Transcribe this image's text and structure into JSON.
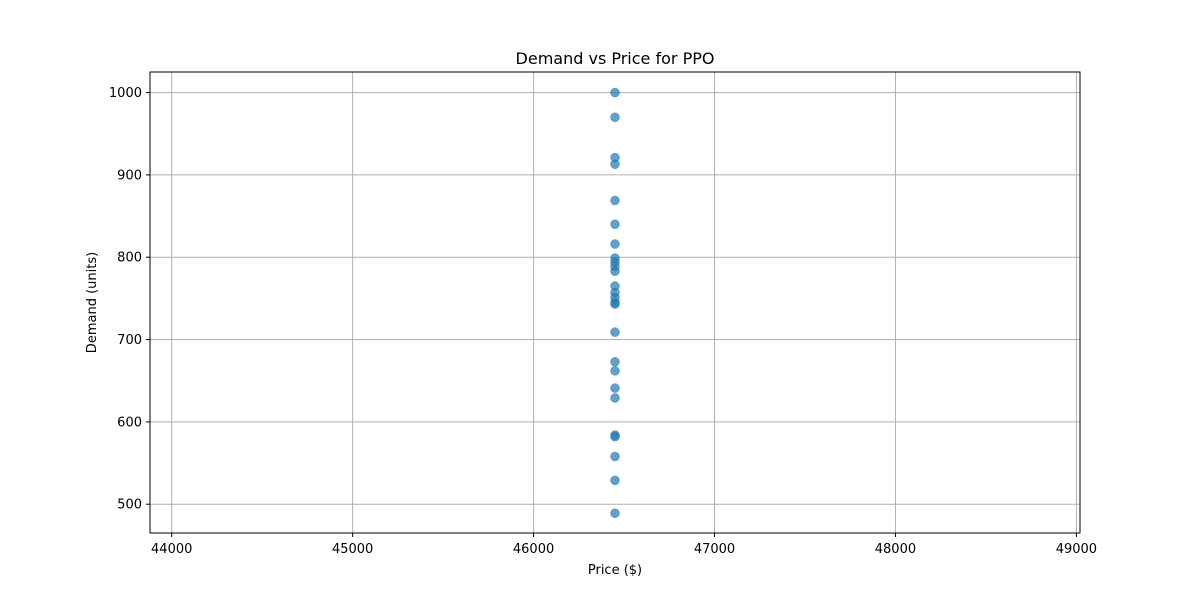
{
  "chart_data": {
    "type": "scatter",
    "title": "Demand vs Price for PPO",
    "xlabel": "Price ($)",
    "ylabel": "Demand (units)",
    "xlim": [
      43880,
      49020
    ],
    "ylim": [
      465,
      1025
    ],
    "x_ticks": [
      44000,
      45000,
      46000,
      47000,
      48000,
      49000
    ],
    "y_ticks": [
      500,
      600,
      700,
      800,
      900,
      1000
    ],
    "grid": true,
    "legend": "none",
    "marker_color": "#1f77b4",
    "marker_alpha": 0.7,
    "points": [
      {
        "x": 46450,
        "y": 1000
      },
      {
        "x": 46450,
        "y": 970
      },
      {
        "x": 46450,
        "y": 921
      },
      {
        "x": 46450,
        "y": 913
      },
      {
        "x": 46450,
        "y": 869
      },
      {
        "x": 46450,
        "y": 840
      },
      {
        "x": 46450,
        "y": 816
      },
      {
        "x": 46450,
        "y": 799
      },
      {
        "x": 46450,
        "y": 794
      },
      {
        "x": 46450,
        "y": 789
      },
      {
        "x": 46450,
        "y": 783
      },
      {
        "x": 46450,
        "y": 765
      },
      {
        "x": 46450,
        "y": 757
      },
      {
        "x": 46450,
        "y": 751
      },
      {
        "x": 46450,
        "y": 745
      },
      {
        "x": 46450,
        "y": 743
      },
      {
        "x": 46450,
        "y": 709
      },
      {
        "x": 46450,
        "y": 673
      },
      {
        "x": 46450,
        "y": 662
      },
      {
        "x": 46450,
        "y": 641
      },
      {
        "x": 46450,
        "y": 629
      },
      {
        "x": 46450,
        "y": 584
      },
      {
        "x": 46450,
        "y": 582
      },
      {
        "x": 46450,
        "y": 558
      },
      {
        "x": 46450,
        "y": 529
      },
      {
        "x": 46450,
        "y": 489
      }
    ]
  }
}
